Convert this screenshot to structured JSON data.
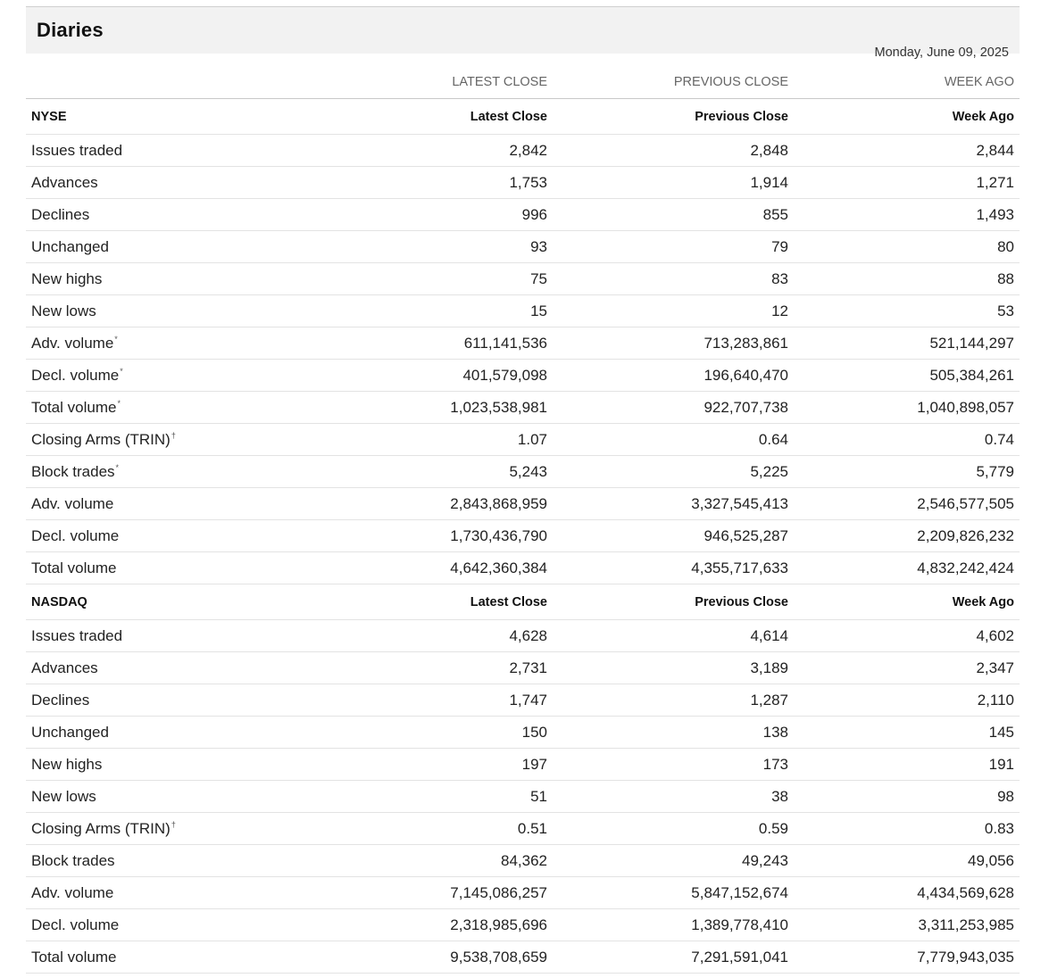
{
  "title": "Diaries",
  "date": "Monday, June 09, 2025",
  "columns": [
    "LATEST CLOSE",
    "PREVIOUS CLOSE",
    "WEEK AGO"
  ],
  "sections": [
    {
      "name": "NYSE",
      "headers": [
        "Latest Close",
        "Previous Close",
        "Week Ago"
      ],
      "rows": [
        {
          "label": "Issues traded",
          "mark": "",
          "latest": "2,842",
          "previous": "2,848",
          "week": "2,844"
        },
        {
          "label": "Advances",
          "mark": "",
          "latest": "1,753",
          "previous": "1,914",
          "week": "1,271"
        },
        {
          "label": "Declines",
          "mark": "",
          "latest": "996",
          "previous": "855",
          "week": "1,493"
        },
        {
          "label": "Unchanged",
          "mark": "",
          "latest": "93",
          "previous": "79",
          "week": "80"
        },
        {
          "label": "New highs",
          "mark": "",
          "latest": "75",
          "previous": "83",
          "week": "88"
        },
        {
          "label": "New lows",
          "mark": "",
          "latest": "15",
          "previous": "12",
          "week": "53"
        },
        {
          "label": "Adv. volume",
          "mark": "*",
          "latest": "611,141,536",
          "previous": "713,283,861",
          "week": "521,144,297"
        },
        {
          "label": "Decl. volume",
          "mark": "*",
          "latest": "401,579,098",
          "previous": "196,640,470",
          "week": "505,384,261"
        },
        {
          "label": "Total volume",
          "mark": "*",
          "latest": "1,023,538,981",
          "previous": "922,707,738",
          "week": "1,040,898,057"
        },
        {
          "label": "Closing Arms (TRIN)",
          "mark": "†",
          "latest": "1.07",
          "previous": "0.64",
          "week": "0.74"
        },
        {
          "label": "Block trades",
          "mark": "*",
          "latest": "5,243",
          "previous": "5,225",
          "week": "5,779"
        },
        {
          "label": "Adv. volume",
          "mark": "",
          "latest": "2,843,868,959",
          "previous": "3,327,545,413",
          "week": "2,546,577,505"
        },
        {
          "label": "Decl. volume",
          "mark": "",
          "latest": "1,730,436,790",
          "previous": "946,525,287",
          "week": "2,209,826,232"
        },
        {
          "label": "Total volume",
          "mark": "",
          "latest": "4,642,360,384",
          "previous": "4,355,717,633",
          "week": "4,832,242,424"
        }
      ]
    },
    {
      "name": "NASDAQ",
      "headers": [
        "Latest Close",
        "Previous Close",
        "Week Ago"
      ],
      "rows": [
        {
          "label": "Issues traded",
          "mark": "",
          "latest": "4,628",
          "previous": "4,614",
          "week": "4,602"
        },
        {
          "label": "Advances",
          "mark": "",
          "latest": "2,731",
          "previous": "3,189",
          "week": "2,347"
        },
        {
          "label": "Declines",
          "mark": "",
          "latest": "1,747",
          "previous": "1,287",
          "week": "2,110"
        },
        {
          "label": "Unchanged",
          "mark": "",
          "latest": "150",
          "previous": "138",
          "week": "145"
        },
        {
          "label": "New highs",
          "mark": "",
          "latest": "197",
          "previous": "173",
          "week": "191"
        },
        {
          "label": "New lows",
          "mark": "",
          "latest": "51",
          "previous": "38",
          "week": "98"
        },
        {
          "label": "Closing Arms (TRIN)",
          "mark": "†",
          "latest": "0.51",
          "previous": "0.59",
          "week": "0.83"
        },
        {
          "label": "Block trades",
          "mark": "",
          "latest": "84,362",
          "previous": "49,243",
          "week": "49,056"
        },
        {
          "label": "Adv. volume",
          "mark": "",
          "latest": "7,145,086,257",
          "previous": "5,847,152,674",
          "week": "4,434,569,628"
        },
        {
          "label": "Decl. volume",
          "mark": "",
          "latest": "2,318,985,696",
          "previous": "1,389,778,410",
          "week": "3,311,253,985"
        },
        {
          "label": "Total volume",
          "mark": "",
          "latest": "9,538,708,659",
          "previous": "7,291,591,041",
          "week": "7,779,943,035"
        }
      ]
    }
  ]
}
